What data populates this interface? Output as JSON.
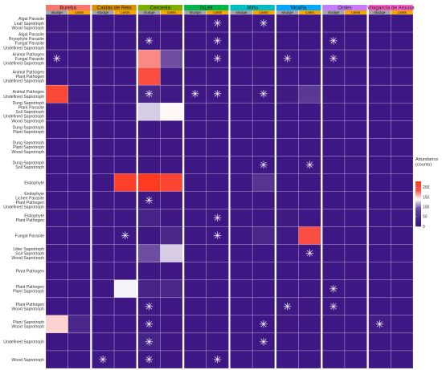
{
  "chart_data": {
    "type": "heatmap",
    "title": "",
    "xlabel": "",
    "ylabel": "",
    "facets": [
      {
        "name": "Bureba",
        "color": "#f8766d"
      },
      {
        "name": "Caldas de Reis",
        "color": "#d89000"
      },
      {
        "name": "Cercesta",
        "color": "#7cae00"
      },
      {
        "name": "InLeit",
        "color": "#00b54a"
      },
      {
        "name": "Miño",
        "color": "#00bfc4"
      },
      {
        "name": "Moaña",
        "color": "#00a9ff"
      },
      {
        "name": "Ordes",
        "color": "#c77cff"
      },
      {
        "name": "Vilagarcía de Arousa",
        "color": "#ff61cc"
      }
    ],
    "sub_columns": [
      {
        "label": "sludge",
        "color": "#a3a3a3"
      },
      {
        "label": "casts",
        "color": "#f7a600"
      }
    ],
    "rows": [
      [
        "Algal Parasite",
        "Leaf Saprotroph",
        "Wood Saprotroph"
      ],
      [
        "Algal Parasite",
        "Bryophyte Parasite",
        "Fungal Parasite",
        "Undefined Saprotroph"
      ],
      [
        "Animal Pathogen",
        "Fungal Parasite",
        "Undefined Saprotroph"
      ],
      [
        "Animal Pathogen",
        "Plant Pathogen",
        "Undefined Saprotroph"
      ],
      [
        "Animal Pathogen",
        "Undefined Saprotroph"
      ],
      [
        "Dung Saprotroph",
        "Plant Parasite",
        "Soil Saprotroph",
        "Undefined Saprotroph",
        "Wood Saprotroph"
      ],
      [
        "Dung Saprotroph",
        "Plant Saprotroph"
      ],
      [
        "Dung Saprotroph",
        "Plant Saprotroph",
        "Wood Saprotroph"
      ],
      [
        "Dung Saprotroph",
        "Soil Saprotroph"
      ],
      [
        "Endophyte"
      ],
      [
        "Endophyte",
        "Lichen Parasite",
        "Plant Pathogen",
        "Undefined Saprotroph"
      ],
      [
        "Endophyte",
        "Plant Pathogen"
      ],
      [
        "Fungal Parasite"
      ],
      [
        "Litter Saprotroph",
        "Soil Saprotroph",
        "Wood Saprotroph"
      ],
      [
        "Plant Pathogen"
      ],
      [
        "Plant Pathogen",
        "Plant Saprotroph"
      ],
      [
        "Plant Pathogen",
        "Wood Saprotroph"
      ],
      [
        "Plant Saprotroph",
        "Wood Saprotroph"
      ],
      [
        "Undefined Saprotroph"
      ],
      [
        "Wood Saprotroph"
      ]
    ],
    "values": [
      [
        5,
        4,
        4,
        4,
        12,
        6,
        4,
        4,
        5,
        4,
        4,
        5,
        4,
        5,
        4,
        4
      ],
      [
        4,
        4,
        4,
        4,
        6,
        5,
        4,
        4,
        6,
        5,
        4,
        4,
        4,
        4,
        4,
        4
      ],
      [
        4,
        5,
        4,
        4,
        170,
        90,
        4,
        4,
        4,
        5,
        8,
        6,
        4,
        8,
        4,
        4
      ],
      [
        4,
        4,
        4,
        4,
        195,
        6,
        4,
        4,
        4,
        4,
        4,
        4,
        4,
        4,
        4,
        4
      ],
      [
        205,
        12,
        4,
        4,
        40,
        12,
        4,
        6,
        12,
        8,
        14,
        65,
        5,
        4,
        4,
        4
      ],
      [
        4,
        4,
        4,
        4,
        125,
        140,
        4,
        4,
        4,
        4,
        4,
        4,
        4,
        4,
        4,
        4
      ],
      [
        4,
        4,
        4,
        4,
        6,
        5,
        4,
        4,
        4,
        4,
        4,
        4,
        4,
        4,
        4,
        4
      ],
      [
        4,
        4,
        4,
        4,
        5,
        5,
        4,
        4,
        4,
        4,
        4,
        4,
        4,
        4,
        4,
        4
      ],
      [
        4,
        4,
        4,
        4,
        6,
        5,
        4,
        4,
        4,
        4,
        4,
        6,
        4,
        12,
        4,
        4
      ],
      [
        4,
        4,
        4,
        220,
        230,
        210,
        4,
        4,
        4,
        60,
        4,
        4,
        4,
        4,
        4,
        4
      ],
      [
        4,
        4,
        4,
        4,
        8,
        5,
        4,
        4,
        4,
        6,
        4,
        4,
        4,
        4,
        4,
        4
      ],
      [
        4,
        4,
        4,
        4,
        35,
        6,
        4,
        4,
        4,
        4,
        14,
        4,
        4,
        4,
        4,
        4
      ],
      [
        4,
        4,
        4,
        4,
        6,
        40,
        4,
        4,
        4,
        40,
        10,
        195,
        4,
        4,
        4,
        4
      ],
      [
        4,
        4,
        4,
        4,
        90,
        125,
        4,
        4,
        4,
        4,
        4,
        4,
        5,
        6,
        4,
        4
      ],
      [
        4,
        4,
        4,
        4,
        6,
        5,
        4,
        4,
        4,
        4,
        4,
        4,
        4,
        5,
        4,
        4
      ],
      [
        4,
        4,
        4,
        135,
        35,
        40,
        4,
        4,
        4,
        4,
        4,
        4,
        4,
        4,
        4,
        4
      ],
      [
        4,
        4,
        4,
        4,
        12,
        6,
        4,
        4,
        4,
        4,
        10,
        5,
        4,
        4,
        4,
        4
      ],
      [
        150,
        40,
        4,
        4,
        6,
        5,
        4,
        4,
        4,
        4,
        5,
        4,
        4,
        4,
        18,
        4
      ],
      [
        4,
        4,
        4,
        4,
        30,
        5,
        4,
        4,
        4,
        4,
        4,
        4,
        4,
        4,
        4,
        4
      ],
      [
        4,
        4,
        4,
        4,
        6,
        5,
        4,
        4,
        4,
        4,
        4,
        4,
        4,
        4,
        4,
        4
      ]
    ],
    "significant": [
      [
        2,
        5
      ],
      [
        2,
        8
      ],
      [
        2,
        13
      ],
      [
        1,
        8
      ],
      [
        1,
        10
      ],
      [
        3,
        1
      ],
      [
        3,
        8
      ],
      [
        3,
        11
      ],
      [
        3,
        13
      ],
      [
        5,
        5
      ],
      [
        5,
        7
      ],
      [
        5,
        8
      ],
      [
        5,
        10
      ],
      [
        9,
        10
      ],
      [
        9,
        12
      ],
      [
        11,
        5
      ],
      [
        12,
        8
      ],
      [
        13,
        4
      ],
      [
        13,
        8
      ],
      [
        14,
        12
      ],
      [
        16,
        13
      ],
      [
        17,
        5
      ],
      [
        17,
        11
      ],
      [
        17,
        13
      ],
      [
        18,
        5
      ],
      [
        18,
        10
      ],
      [
        18,
        15
      ],
      [
        19,
        5
      ],
      [
        19,
        10
      ],
      [
        20,
        3
      ],
      [
        20,
        5
      ],
      [
        20,
        8
      ]
    ],
    "legend": {
      "title": "Abundance\n(counts)",
      "ticks": [
        200,
        150,
        100,
        50,
        0
      ],
      "range": [
        0,
        230
      ],
      "colors": [
        "#3c1582",
        "#4b2a8a",
        "#6d4fa0",
        "#ffffff",
        "#f8544d",
        "#ff3b1f"
      ],
      "placement": "right"
    }
  }
}
